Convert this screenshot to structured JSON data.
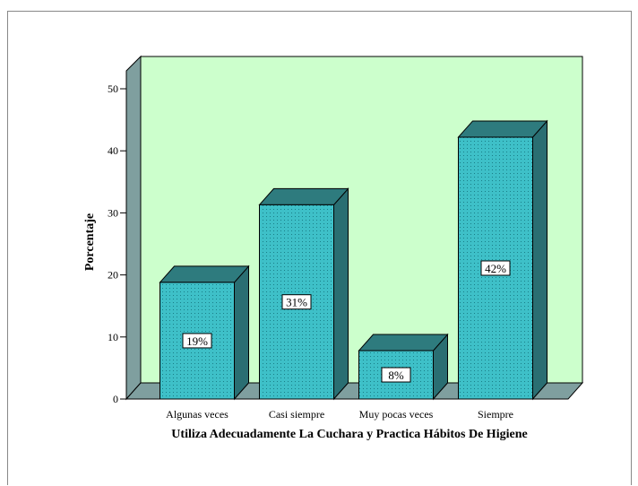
{
  "chart_data": {
    "type": "bar3d",
    "categories": [
      "Algunas veces",
      "Casi siempre",
      "Muy pocas veces",
      "Siempre"
    ],
    "values": [
      18.8,
      31.3,
      7.8,
      42.2
    ],
    "value_labels": [
      "19%",
      "31%",
      "8%",
      "42%"
    ],
    "y_label": "Porcentaje",
    "x_label": "Utiliza Adecuadamente La Cuchara y Practica Hábitos De Higiene",
    "ylim": [
      0,
      50
    ],
    "yticks": [
      0,
      10,
      20,
      30,
      40,
      50
    ],
    "color": "#3ec0c8",
    "wall_color": "#ccffcc"
  }
}
